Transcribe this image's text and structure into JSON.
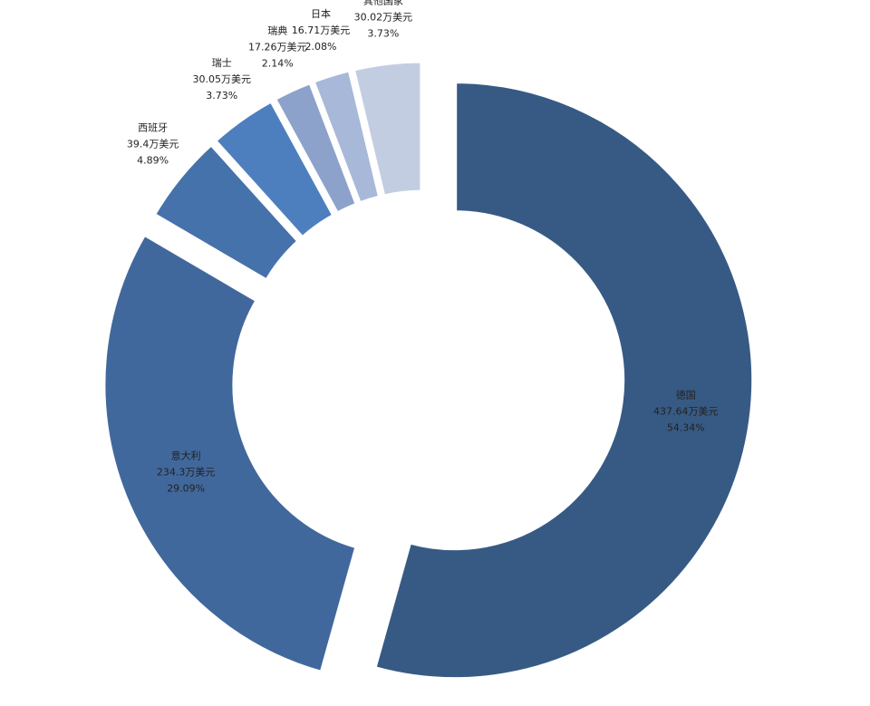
{
  "chart_data": {
    "type": "donut",
    "categories": [
      "德国",
      "意大利",
      "西班牙",
      "瑞士",
      "瑞典",
      "日本",
      "其他国家"
    ],
    "values": [
      54.34,
      29.09,
      4.89,
      3.73,
      2.14,
      2.08,
      3.73
    ],
    "value_labels": [
      "54.34%",
      "29.09%",
      "4.89%",
      "3.73%",
      "2.14%",
      "2.08%",
      "3.73%"
    ],
    "amount_labels": [
      "437.64万美元",
      "234.3万美元",
      "39.4万美元",
      "30.05万美元",
      "17.26万美元",
      "16.71万美元",
      "30.02万美元"
    ],
    "colors": [
      "#375a84",
      "#41689c",
      "#4672ab",
      "#4d7fbe",
      "#8ca2cb",
      "#a8b8d8",
      "#c3cde2"
    ]
  }
}
